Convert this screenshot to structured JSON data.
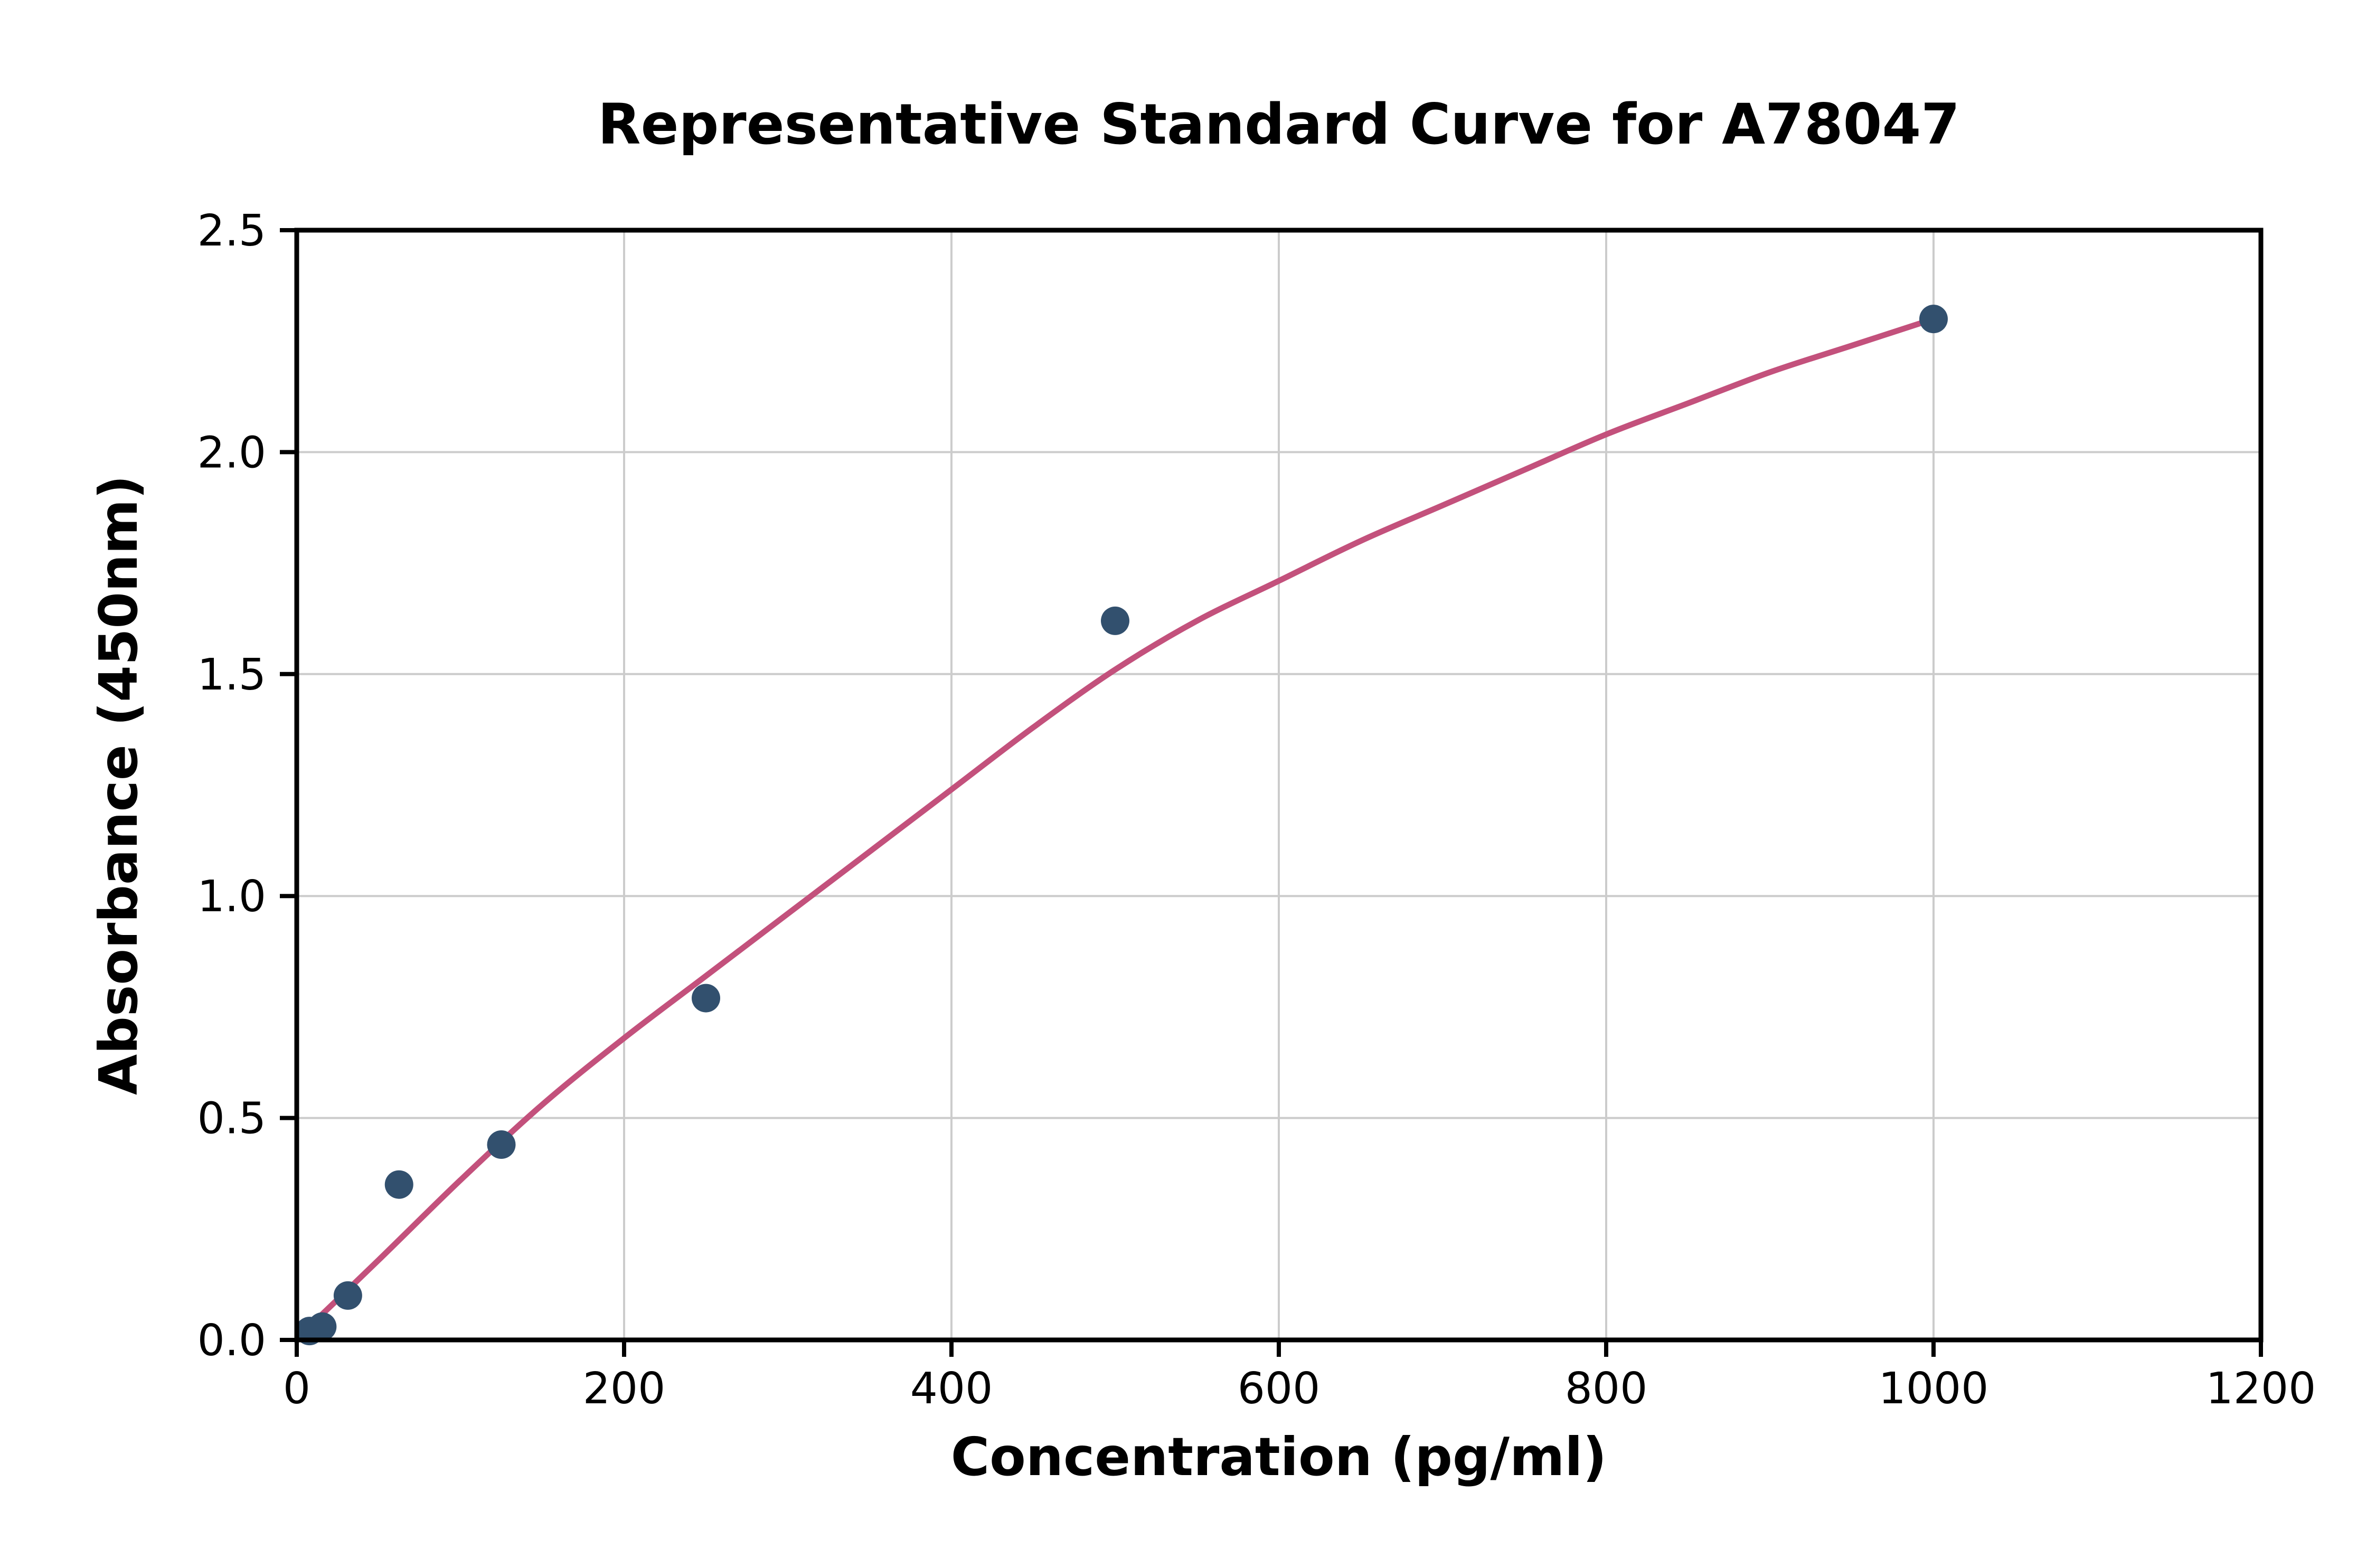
{
  "chart_data": {
    "type": "scatter",
    "title": "Representative Standard Curve for A78047",
    "xlabel": "Concentration (pg/ml)",
    "ylabel": "Absorbance (450nm)",
    "xlim": [
      0,
      1200
    ],
    "ylim": [
      0,
      2.5
    ],
    "x_ticks": [
      0,
      200,
      400,
      600,
      800,
      1000,
      1200
    ],
    "y_ticks": [
      0,
      0.5,
      1.0,
      1.5,
      2.0,
      2.5
    ],
    "grid": true,
    "legend_position": "none",
    "points": [
      [
        7.8,
        0.02
      ],
      [
        15.6,
        0.03
      ],
      [
        31.25,
        0.1
      ],
      [
        62.5,
        0.35
      ],
      [
        125,
        0.44
      ],
      [
        250,
        0.77
      ],
      [
        500,
        1.62
      ],
      [
        1000,
        2.3
      ]
    ],
    "curve_points": [
      [
        2,
        0.01
      ],
      [
        50,
        0.18
      ],
      [
        100,
        0.36
      ],
      [
        150,
        0.53
      ],
      [
        200,
        0.68
      ],
      [
        250,
        0.82
      ],
      [
        300,
        0.96
      ],
      [
        350,
        1.1
      ],
      [
        400,
        1.24
      ],
      [
        450,
        1.38
      ],
      [
        500,
        1.51
      ],
      [
        550,
        1.62
      ],
      [
        600,
        1.71
      ],
      [
        650,
        1.8
      ],
      [
        700,
        1.88
      ],
      [
        750,
        1.96
      ],
      [
        800,
        2.04
      ],
      [
        850,
        2.11
      ],
      [
        900,
        2.18
      ],
      [
        950,
        2.24
      ],
      [
        1000,
        2.3
      ]
    ],
    "point_color": "#32506e",
    "curve_color": "#c3517c",
    "grid_color": "#cccccc",
    "axis_color": "#000000",
    "background_color": "#ffffff"
  }
}
